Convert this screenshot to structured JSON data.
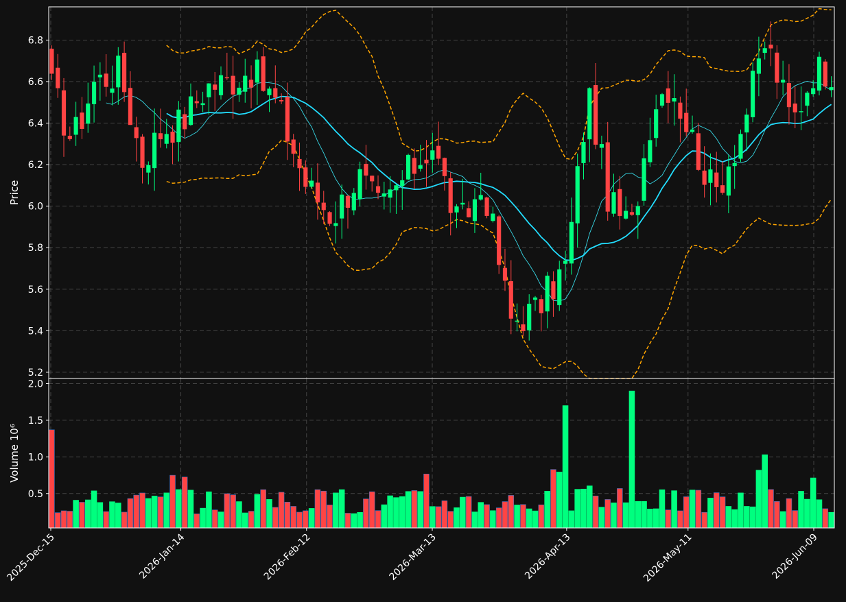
{
  "chart_data": [
    {
      "type": "candlestick",
      "ylabel": "Price",
      "ylim": [
        5.17,
        6.96
      ],
      "yticks": [
        "5.2",
        "5.4",
        "5.6",
        "5.8",
        "6.0",
        "6.2",
        "6.4",
        "6.6",
        "6.8"
      ],
      "xticks": [
        "2025-Dec-15",
        "2026-Jan-14",
        "2026-Feb-12",
        "2026-Mar-13",
        "2026-Apr-13",
        "2026-May-11",
        "2026-Jun-09"
      ],
      "grid": true,
      "overlays": [
        "moving average (short)",
        "moving average (long)",
        "upper band",
        "lower band"
      ],
      "colors": {
        "up": "#00ff7f",
        "down": "#ff4444",
        "short_ma": "#37d6e4",
        "long_ma": "#22ddff",
        "bands": "#ffa500",
        "background": "#111111",
        "grid": "#444444"
      },
      "series_points": [
        {
          "x": "2025-Dec-15",
          "close": 6.58
        },
        {
          "x": "2025-Dec-20",
          "close": 6.31
        },
        {
          "x": "2025-Dec-25",
          "close": 6.6
        },
        {
          "x": "2025-Dec-31",
          "close": 6.65
        },
        {
          "x": "2026-Jan-05",
          "close": 6.22
        },
        {
          "x": "2026-Jan-10",
          "close": 6.38
        },
        {
          "x": "2026-Jan-14",
          "close": 6.4
        },
        {
          "x": "2026-Jan-20",
          "close": 6.58
        },
        {
          "x": "2026-Jan-25",
          "close": 6.6
        },
        {
          "x": "2026-Jan-30",
          "close": 6.66
        },
        {
          "x": "2026-Feb-05",
          "close": 6.5
        },
        {
          "x": "2026-Feb-12",
          "close": 6.1
        },
        {
          "x": "2026-Feb-18",
          "close": 5.95
        },
        {
          "x": "2026-Feb-24",
          "close": 6.15
        },
        {
          "x": "2026-Mar-01",
          "close": 5.98
        },
        {
          "x": "2026-Mar-07",
          "close": 6.15
        },
        {
          "x": "2026-Mar-13",
          "close": 6.3
        },
        {
          "x": "2026-Mar-19",
          "close": 5.9
        },
        {
          "x": "2026-Mar-25",
          "close": 6.1
        },
        {
          "x": "2026-Mar-31",
          "close": 5.45
        },
        {
          "x": "2026-Apr-06",
          "close": 5.5
        },
        {
          "x": "2026-Apr-13",
          "close": 5.72
        },
        {
          "x": "2026-Apr-18",
          "close": 6.55
        },
        {
          "x": "2026-Apr-23",
          "close": 6.0
        },
        {
          "x": "2026-Apr-28",
          "close": 5.9
        },
        {
          "x": "2026-May-03",
          "close": 6.5
        },
        {
          "x": "2026-May-07",
          "close": 6.6
        },
        {
          "x": "2026-May-11",
          "close": 6.38
        },
        {
          "x": "2026-May-17",
          "close": 6.05
        },
        {
          "x": "2026-May-23",
          "close": 6.35
        },
        {
          "x": "2026-May-29",
          "close": 6.8
        },
        {
          "x": "2026-Jun-04",
          "close": 6.4
        },
        {
          "x": "2026-Jun-09",
          "close": 6.66
        }
      ]
    },
    {
      "type": "bar",
      "ylabel": "Volume  10⁶",
      "ylim": [
        0.03,
        2.07
      ],
      "yticks": [
        "0.5",
        "1.0",
        "1.5",
        "2.0"
      ],
      "grid": true,
      "peak_values": [
        {
          "x": "2025-Dec-15",
          "value": 1.37,
          "direction": "down"
        },
        {
          "x": "2026-Apr-13",
          "value": 1.7,
          "direction": "up"
        },
        {
          "x": "2026-Apr-28",
          "value": 1.9,
          "direction": "up"
        },
        {
          "x": "2026-May-29",
          "value": 1.03,
          "direction": "up"
        }
      ]
    }
  ]
}
